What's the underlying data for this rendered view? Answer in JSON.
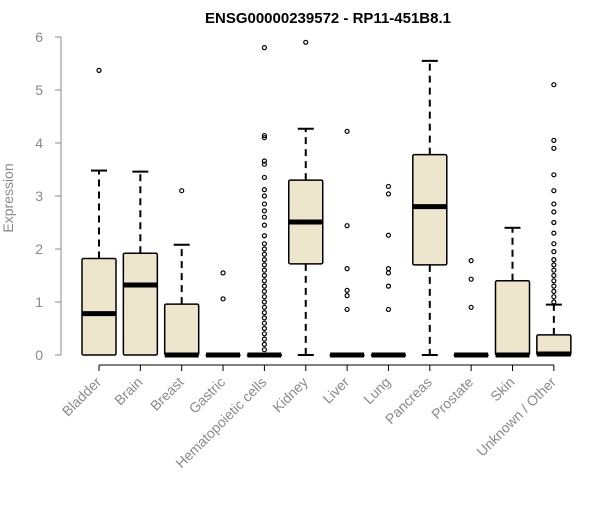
{
  "chart_data": {
    "type": "boxplot",
    "title": "ENSG00000239572 - RP11-451B8.1",
    "xlabel": "",
    "ylabel": "Expression",
    "ylim": [
      0,
      6
    ],
    "yticks": [
      0,
      1,
      2,
      3,
      4,
      5,
      6
    ],
    "grid": false,
    "legend": "none",
    "colors": {
      "box_fill": "#ede6cd",
      "box_stroke": "#000000",
      "axis_label": "#8a8a8a",
      "title": "#000000"
    },
    "categories": [
      "Bladder",
      "Brain",
      "Breast",
      "Gastric",
      "Hematopoietic cells",
      "Kidney",
      "Liver",
      "Lung",
      "Pancreas",
      "Prostate",
      "Skin",
      "Unknown / Other"
    ],
    "boxes": [
      {
        "category": "Bladder",
        "whisker_low": 0,
        "q1": 0,
        "median": 0.78,
        "q3": 1.82,
        "whisker_high": 3.48,
        "outliers": [
          5.37
        ]
      },
      {
        "category": "Brain",
        "whisker_low": 0,
        "q1": 0,
        "median": 1.32,
        "q3": 1.92,
        "whisker_high": 3.46,
        "outliers": []
      },
      {
        "category": "Breast",
        "whisker_low": 0,
        "q1": 0,
        "median": 0,
        "q3": 0.96,
        "whisker_high": 2.08,
        "outliers": [
          3.1
        ]
      },
      {
        "category": "Gastric",
        "whisker_low": 0,
        "q1": 0,
        "median": 0,
        "q3": 0,
        "whisker_high": 0,
        "outliers": [
          1.06,
          1.55
        ]
      },
      {
        "category": "Hematopoietic cells",
        "whisker_low": 0,
        "q1": 0,
        "median": 0,
        "q3": 0,
        "whisker_high": 0,
        "outliers": [
          0.1,
          0.2,
          0.3,
          0.4,
          0.5,
          0.6,
          0.7,
          0.8,
          0.9,
          1.0,
          1.1,
          1.2,
          1.3,
          1.4,
          1.5,
          1.6,
          1.7,
          1.8,
          1.9,
          2.0,
          2.1,
          2.25,
          2.45,
          2.6,
          2.72,
          2.85,
          3.0,
          3.12,
          3.35,
          3.6,
          3.66,
          4.1,
          4.14,
          5.8
        ]
      },
      {
        "category": "Kidney",
        "whisker_low": 0,
        "q1": 1.72,
        "median": 2.51,
        "q3": 3.3,
        "whisker_high": 4.27,
        "outliers": [
          5.9
        ]
      },
      {
        "category": "Liver",
        "whisker_low": 0,
        "q1": 0,
        "median": 0,
        "q3": 0,
        "whisker_high": 0,
        "outliers": [
          0.86,
          1.12,
          1.22,
          1.63,
          2.44,
          4.22
        ]
      },
      {
        "category": "Lung",
        "whisker_low": 0,
        "q1": 0,
        "median": 0,
        "q3": 0,
        "whisker_high": 0,
        "outliers": [
          0.86,
          1.3,
          1.55,
          1.63,
          2.26,
          3.04,
          3.18
        ]
      },
      {
        "category": "Pancreas",
        "whisker_low": 0,
        "q1": 1.7,
        "median": 2.8,
        "q3": 3.78,
        "whisker_high": 5.55,
        "outliers": []
      },
      {
        "category": "Prostate",
        "whisker_low": 0,
        "q1": 0,
        "median": 0,
        "q3": 0,
        "whisker_high": 0,
        "outliers": [
          0.9,
          1.43,
          1.78
        ]
      },
      {
        "category": "Skin",
        "whisker_low": 0,
        "q1": 0,
        "median": 0,
        "q3": 1.4,
        "whisker_high": 2.4,
        "outliers": []
      },
      {
        "category": "Unknown / Other",
        "whisker_low": 0,
        "q1": 0,
        "median": 0.02,
        "q3": 0.38,
        "whisker_high": 0.95,
        "outliers": [
          1.0,
          1.1,
          1.2,
          1.3,
          1.4,
          1.5,
          1.6,
          1.7,
          1.8,
          1.95,
          2.1,
          2.3,
          2.5,
          2.7,
          2.85,
          3.1,
          3.4,
          3.9,
          4.05,
          5.1
        ]
      }
    ]
  }
}
